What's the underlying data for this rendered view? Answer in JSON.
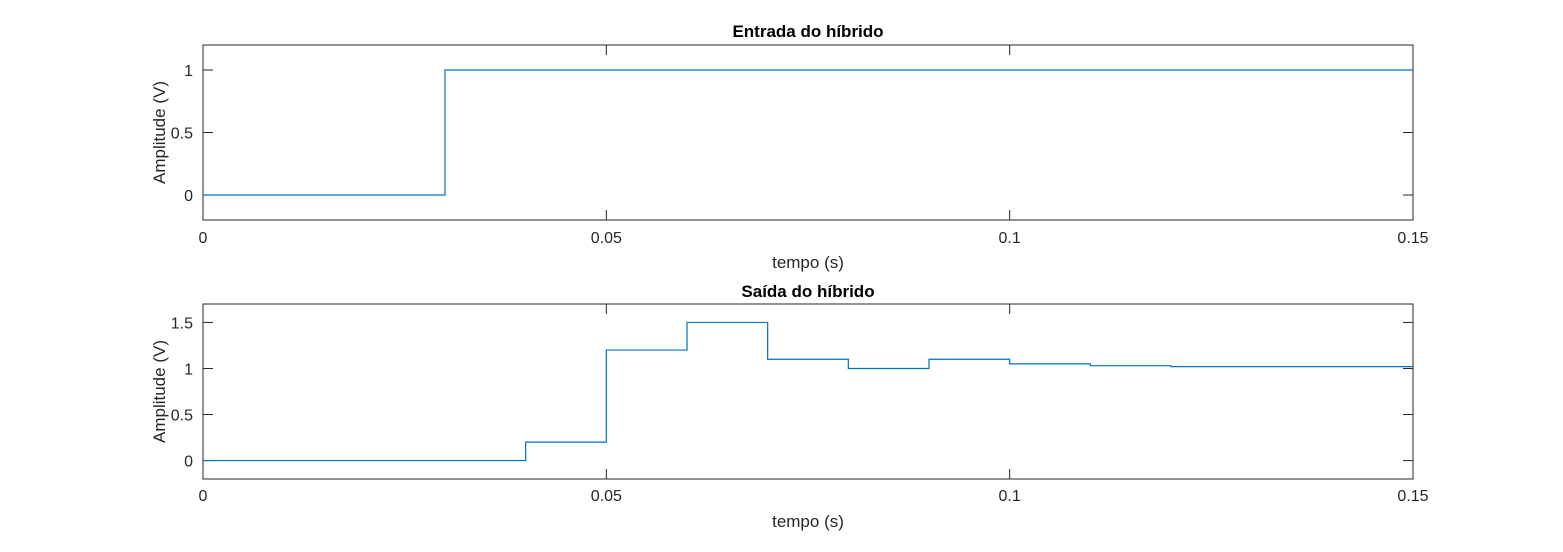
{
  "chart_data": [
    {
      "type": "line",
      "title": "Entrada do híbrido",
      "xlabel": "tempo (s)",
      "ylabel": "Amplitude (V)",
      "xlim": [
        0,
        0.15
      ],
      "ylim": [
        -0.2,
        1.2
      ],
      "xticks": [
        0,
        0.05,
        0.1,
        0.15
      ],
      "xtick_labels": [
        "0",
        "0.05",
        "0.1",
        "0.15"
      ],
      "yticks": [
        0,
        0.5,
        1
      ],
      "ytick_labels": [
        "0",
        "0.5",
        "1"
      ],
      "grid": false,
      "line_color": "#0072BD",
      "series": [
        {
          "x": [
            0,
            0.03,
            0.03,
            0.15
          ],
          "y": [
            0,
            0,
            1,
            1
          ]
        }
      ]
    },
    {
      "type": "line",
      "title": "Saída do híbrido",
      "xlabel": "tempo (s)",
      "ylabel": "Amplitude (V)",
      "xlim": [
        0,
        0.15
      ],
      "ylim": [
        -0.2,
        1.7
      ],
      "xticks": [
        0,
        0.05,
        0.1,
        0.15
      ],
      "xtick_labels": [
        "0",
        "0.05",
        "0.1",
        "0.15"
      ],
      "yticks": [
        0,
        0.5,
        1,
        1.5
      ],
      "ytick_labels": [
        "0",
        "0.5",
        "1",
        "1.5"
      ],
      "grid": false,
      "line_color": "#0072BD",
      "series": [
        {
          "x": [
            0,
            0.04,
            0.04,
            0.05,
            0.05,
            0.06,
            0.06,
            0.07,
            0.07,
            0.08,
            0.08,
            0.09,
            0.09,
            0.1,
            0.1,
            0.11,
            0.11,
            0.12,
            0.12,
            0.15
          ],
          "y": [
            0,
            0,
            0.2,
            0.2,
            1.2,
            1.2,
            1.5,
            1.5,
            1.1,
            1.1,
            1.0,
            1.0,
            1.1,
            1.1,
            1.05,
            1.05,
            1.03,
            1.03,
            1.02,
            1.02
          ]
        }
      ]
    }
  ]
}
